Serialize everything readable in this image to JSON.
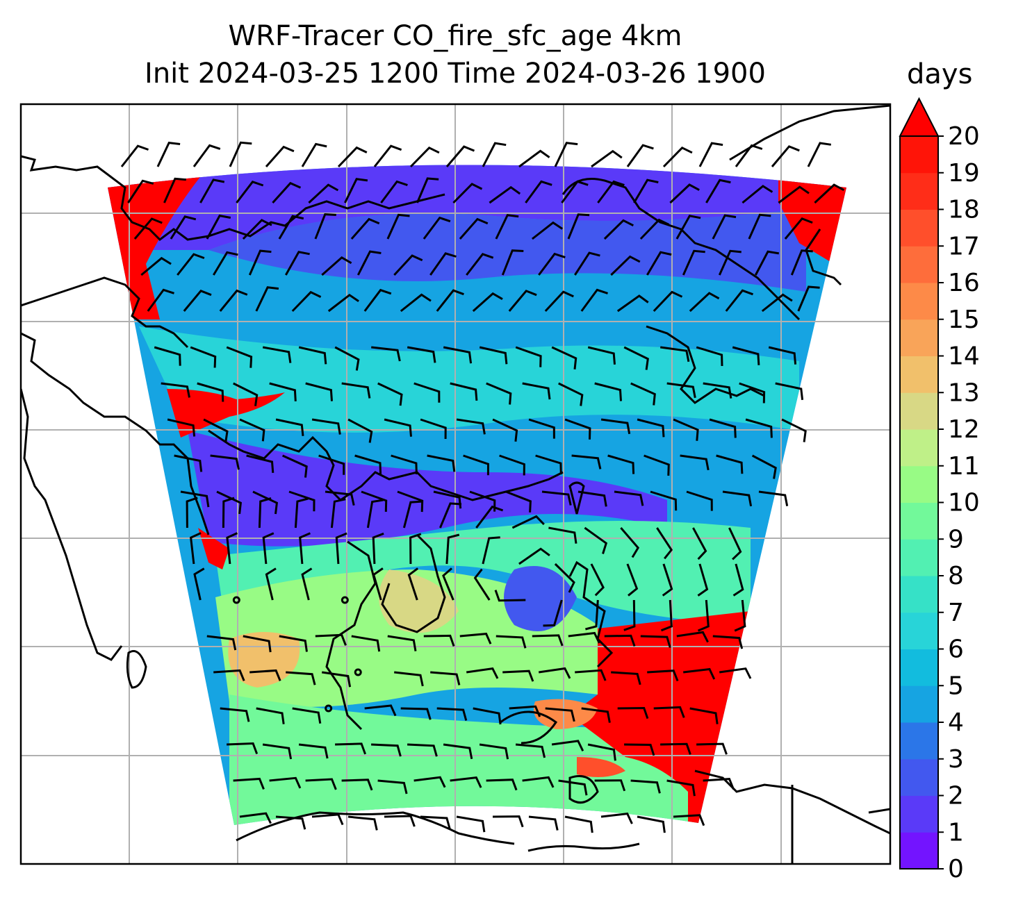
{
  "title": {
    "line1": "WRF-Tracer CO_fire_sfc_age 4km",
    "line2": "Init 2024-03-25 1200 Time 2024-03-26 1900"
  },
  "colorbar": {
    "unit": "days",
    "min": 0,
    "max": 20,
    "extend": "max",
    "ticks": [
      "0",
      "1",
      "2",
      "3",
      "4",
      "5",
      "6",
      "7",
      "8",
      "9",
      "10",
      "11",
      "12",
      "13",
      "14",
      "15",
      "16",
      "17",
      "18",
      "19",
      "20"
    ],
    "colors": [
      "#7314ff",
      "#5a3af8",
      "#4258ef",
      "#2b76e8",
      "#16a4e2",
      "#12bcde",
      "#28d4d8",
      "#36e1c7",
      "#52f0b2",
      "#72f99a",
      "#98fb85",
      "#bff088",
      "#d8d885",
      "#f1c06b",
      "#f9a459",
      "#fd8a48",
      "#fe6d3b",
      "#ff4f2b",
      "#ff2d18",
      "#ff1408"
    ],
    "over_color": "#ff0000"
  },
  "map": {
    "projection": "lambert-like",
    "gridlines": true,
    "coastlines": true,
    "wind_barbs": true,
    "field_regions": [
      {
        "region": "northwest-edge",
        "age_days": 20
      },
      {
        "region": "north-band",
        "age_days": 1.5
      },
      {
        "region": "middle-band",
        "age_days": 5
      },
      {
        "region": "south-west",
        "age_days": 10
      },
      {
        "region": "south-east",
        "age_days": 20
      }
    ]
  }
}
